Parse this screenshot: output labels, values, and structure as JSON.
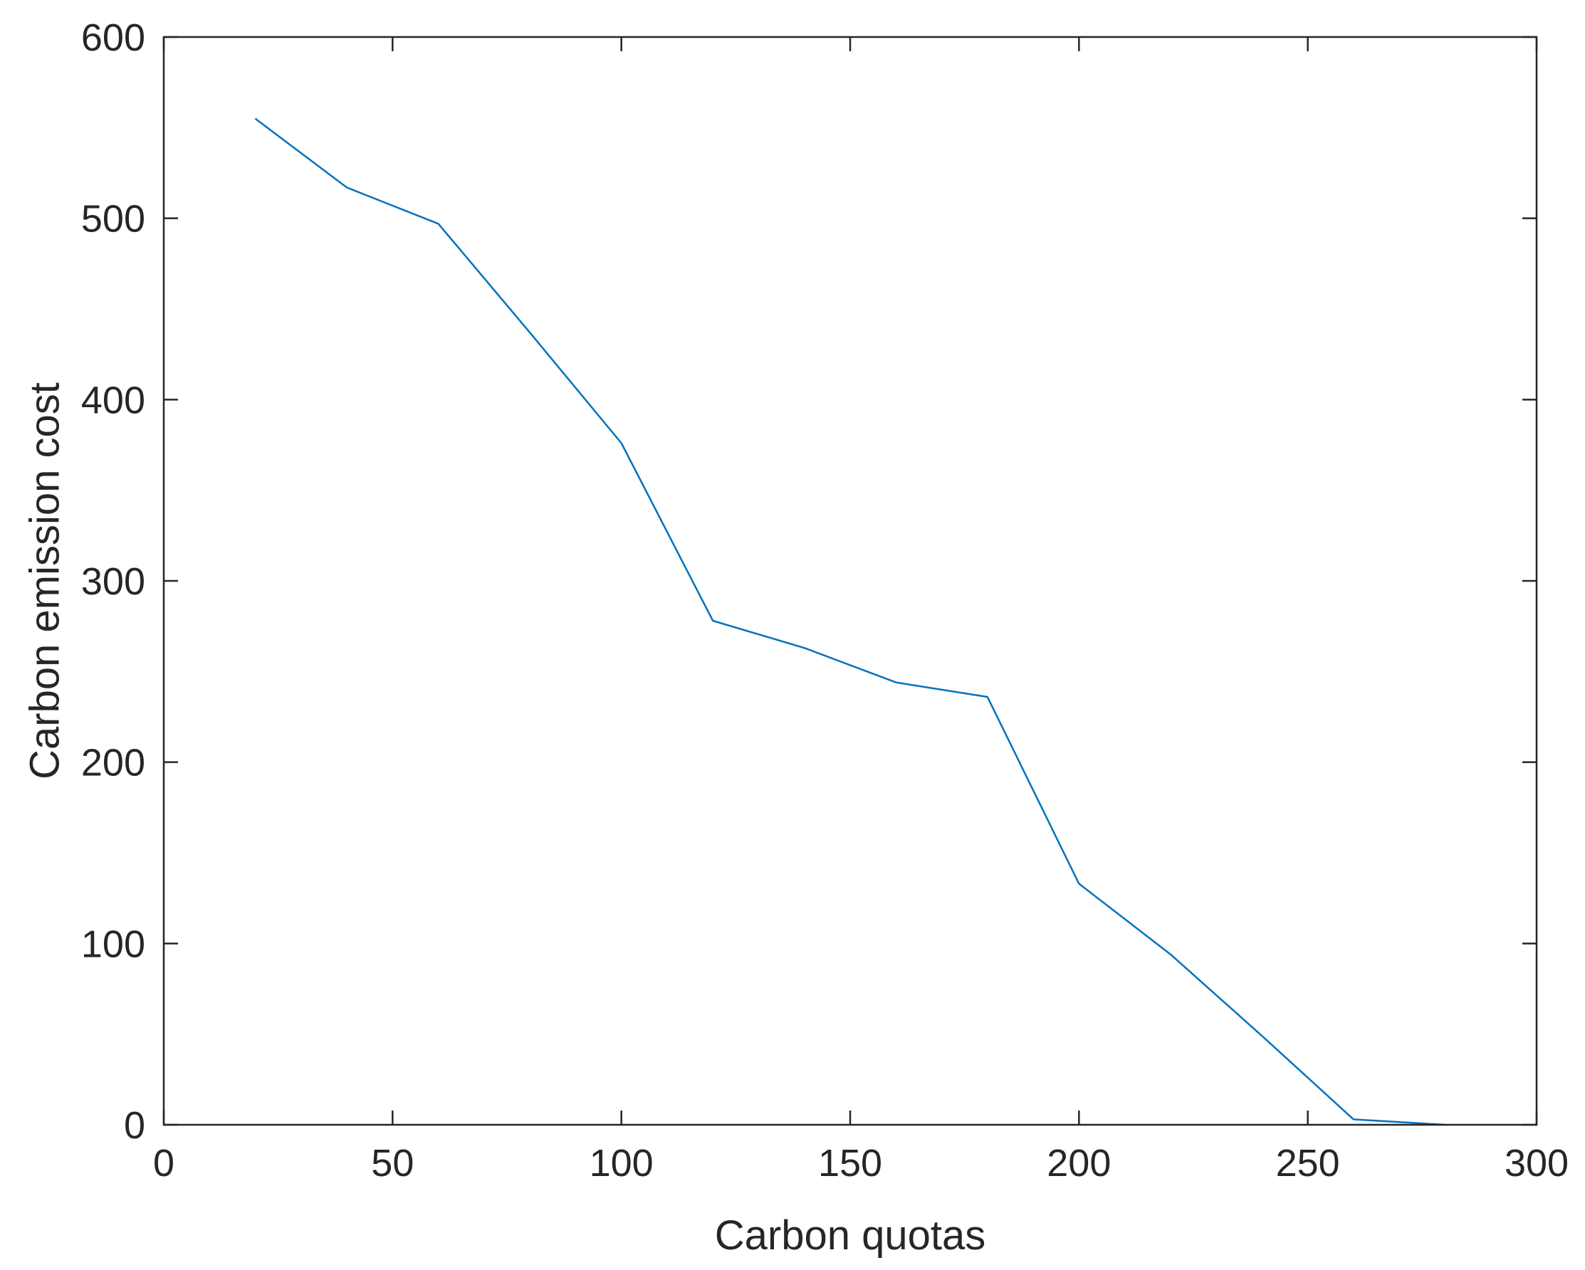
{
  "chart_data": {
    "type": "line",
    "title": "",
    "xlabel": "Carbon quotas",
    "ylabel": "Carbon emission cost",
    "xlim": [
      0,
      300
    ],
    "ylim": [
      0,
      600
    ],
    "xticks": [
      0,
      50,
      100,
      150,
      200,
      250,
      300
    ],
    "yticks": [
      0,
      100,
      200,
      300,
      400,
      500,
      600
    ],
    "grid": false,
    "legend": "none",
    "series": [
      {
        "color": "#0072BD",
        "x": [
          20,
          40,
          60,
          80,
          100,
          120,
          140,
          160,
          180,
          200,
          220,
          240,
          260,
          280
        ],
        "y": [
          555,
          517,
          497,
          437,
          376,
          278,
          263,
          244,
          236,
          133,
          94,
          49,
          3,
          0
        ]
      }
    ]
  }
}
